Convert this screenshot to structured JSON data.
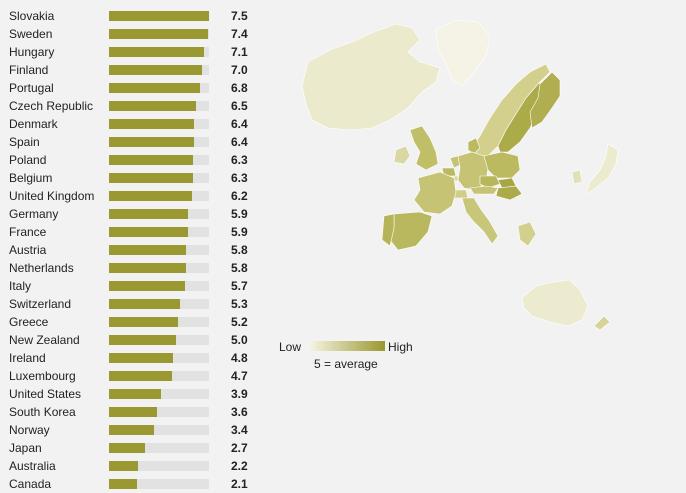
{
  "chart_data": {
    "type": "bar",
    "orientation": "horizontal",
    "categories": [
      "Slovakia",
      "Sweden",
      "Hungary",
      "Finland",
      "Portugal",
      "Czech Republic",
      "Denmark",
      "Spain",
      "Poland",
      "Belgium",
      "United Kingdom",
      "Germany",
      "France",
      "Austria",
      "Netherlands",
      "Italy",
      "Switzerland",
      "Greece",
      "New Zealand",
      "Ireland",
      "Luxembourg",
      "United States",
      "South Korea",
      "Norway",
      "Japan",
      "Australia",
      "Canada"
    ],
    "values": [
      7.5,
      7.4,
      7.1,
      7.0,
      6.8,
      6.5,
      6.4,
      6.4,
      6.3,
      6.3,
      6.2,
      5.9,
      5.9,
      5.8,
      5.8,
      5.7,
      5.3,
      5.2,
      5.0,
      4.8,
      4.7,
      3.9,
      3.6,
      3.4,
      2.7,
      2.2,
      2.1
    ],
    "value_labels": [
      "7.5",
      "7.4",
      "7.1",
      "7.0",
      "6.8",
      "6.5",
      "6.4",
      "6.4",
      "6.3",
      "6.3",
      "6.2",
      "5.9",
      "5.9",
      "5.8",
      "5.8",
      "5.7",
      "5.3",
      "5.2",
      "5.0",
      "4.8",
      "4.7",
      "3.9",
      "3.6",
      "3.4",
      "2.7",
      "2.2",
      "2.1"
    ],
    "xlim": [
      0,
      7.5
    ],
    "bar_color": "#9a9830",
    "track_color": "#e2e2e2",
    "grid": false
  },
  "map": {
    "color_low": "#f5f4e0",
    "color_high": "#9a9830"
  },
  "legend": {
    "low_label": "Low",
    "high_label": "High",
    "note": "5 = average"
  }
}
